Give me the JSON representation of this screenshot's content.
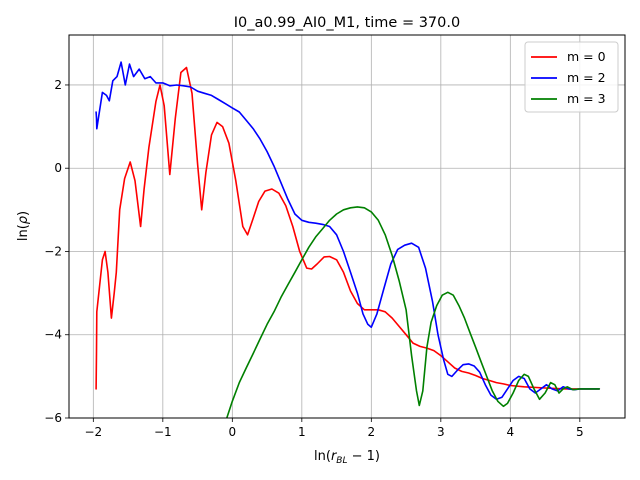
{
  "chart_data": {
    "type": "line",
    "title": "I0_a0.99_AI0_M1, time = 370.0",
    "xlabel": "ln(r_BL − 1)",
    "ylabel": "ln(ρ)",
    "xlim": [
      -2.35,
      5.65
    ],
    "ylim": [
      -6.0,
      3.2
    ],
    "xticks": [
      -2,
      -1,
      0,
      1,
      2,
      3,
      4,
      5
    ],
    "xtick_labels": [
      "−2",
      "−1",
      "0",
      "1",
      "2",
      "3",
      "4",
      "5"
    ],
    "yticks": [
      -6,
      -4,
      -2,
      0,
      2
    ],
    "ytick_labels": [
      "−6",
      "−4",
      "−2",
      "0",
      "2"
    ],
    "grid": true,
    "legend_position": "top-right",
    "series": [
      {
        "name": "m = 0",
        "color": "#ff0000",
        "points": [
          [
            -1.96,
            -5.3
          ],
          [
            -1.955,
            -4.4
          ],
          [
            -1.95,
            -3.45
          ],
          [
            -1.87,
            -2.2
          ],
          [
            -1.83,
            -2.0
          ],
          [
            -1.79,
            -2.5
          ],
          [
            -1.74,
            -3.6
          ],
          [
            -1.7,
            -3.0
          ],
          [
            -1.67,
            -2.5
          ],
          [
            -1.62,
            -1.0
          ],
          [
            -1.55,
            -0.25
          ],
          [
            -1.47,
            0.15
          ],
          [
            -1.4,
            -0.3
          ],
          [
            -1.32,
            -1.4
          ],
          [
            -1.27,
            -0.5
          ],
          [
            -1.2,
            0.5
          ],
          [
            -1.1,
            1.6
          ],
          [
            -1.04,
            2.0
          ],
          [
            -0.98,
            1.5
          ],
          [
            -0.9,
            -0.15
          ],
          [
            -0.82,
            1.2
          ],
          [
            -0.74,
            2.3
          ],
          [
            -0.66,
            2.42
          ],
          [
            -0.58,
            1.8
          ],
          [
            -0.5,
            0.1
          ],
          [
            -0.44,
            -1.0
          ],
          [
            -0.38,
            -0.1
          ],
          [
            -0.3,
            0.8
          ],
          [
            -0.22,
            1.1
          ],
          [
            -0.14,
            1.0
          ],
          [
            -0.05,
            0.6
          ],
          [
            0.05,
            -0.3
          ],
          [
            0.15,
            -1.4
          ],
          [
            0.22,
            -1.6
          ],
          [
            0.3,
            -1.2
          ],
          [
            0.38,
            -0.8
          ],
          [
            0.47,
            -0.55
          ],
          [
            0.57,
            -0.5
          ],
          [
            0.67,
            -0.6
          ],
          [
            0.77,
            -0.9
          ],
          [
            0.87,
            -1.4
          ],
          [
            0.97,
            -2.0
          ],
          [
            1.07,
            -2.4
          ],
          [
            1.14,
            -2.42
          ],
          [
            1.22,
            -2.3
          ],
          [
            1.32,
            -2.13
          ],
          [
            1.4,
            -2.12
          ],
          [
            1.5,
            -2.2
          ],
          [
            1.6,
            -2.5
          ],
          [
            1.7,
            -2.95
          ],
          [
            1.8,
            -3.25
          ],
          [
            1.9,
            -3.4
          ],
          [
            2.0,
            -3.4
          ],
          [
            2.1,
            -3.4
          ],
          [
            2.2,
            -3.45
          ],
          [
            2.3,
            -3.6
          ],
          [
            2.4,
            -3.8
          ],
          [
            2.5,
            -4.0
          ],
          [
            2.6,
            -4.2
          ],
          [
            2.7,
            -4.28
          ],
          [
            2.8,
            -4.32
          ],
          [
            2.9,
            -4.38
          ],
          [
            3.0,
            -4.5
          ],
          [
            3.1,
            -4.65
          ],
          [
            3.2,
            -4.8
          ],
          [
            3.3,
            -4.88
          ],
          [
            3.4,
            -4.92
          ],
          [
            3.5,
            -4.98
          ],
          [
            3.6,
            -5.05
          ],
          [
            3.7,
            -5.1
          ],
          [
            3.8,
            -5.15
          ],
          [
            3.9,
            -5.18
          ],
          [
            4.0,
            -5.22
          ],
          [
            4.2,
            -5.25
          ],
          [
            4.5,
            -5.28
          ],
          [
            4.8,
            -5.3
          ],
          [
            5.0,
            -5.3
          ],
          [
            5.28,
            -5.3
          ]
        ]
      },
      {
        "name": "m = 2",
        "color": "#0000ff",
        "points": [
          [
            -1.96,
            1.35
          ],
          [
            -1.955,
            1.2
          ],
          [
            -1.95,
            0.95
          ],
          [
            -1.87,
            1.82
          ],
          [
            -1.81,
            1.75
          ],
          [
            -1.77,
            1.62
          ],
          [
            -1.72,
            2.1
          ],
          [
            -1.66,
            2.2
          ],
          [
            -1.6,
            2.55
          ],
          [
            -1.54,
            2.0
          ],
          [
            -1.48,
            2.5
          ],
          [
            -1.42,
            2.2
          ],
          [
            -1.34,
            2.38
          ],
          [
            -1.26,
            2.15
          ],
          [
            -1.18,
            2.2
          ],
          [
            -1.1,
            2.05
          ],
          [
            -1.0,
            2.05
          ],
          [
            -0.9,
            1.98
          ],
          [
            -0.8,
            2.0
          ],
          [
            -0.7,
            1.98
          ],
          [
            -0.6,
            1.95
          ],
          [
            -0.5,
            1.85
          ],
          [
            -0.4,
            1.8
          ],
          [
            -0.3,
            1.75
          ],
          [
            -0.2,
            1.65
          ],
          [
            -0.1,
            1.55
          ],
          [
            0.0,
            1.45
          ],
          [
            0.1,
            1.35
          ],
          [
            0.2,
            1.15
          ],
          [
            0.3,
            0.95
          ],
          [
            0.4,
            0.7
          ],
          [
            0.5,
            0.4
          ],
          [
            0.6,
            0.05
          ],
          [
            0.7,
            -0.35
          ],
          [
            0.8,
            -0.75
          ],
          [
            0.9,
            -1.1
          ],
          [
            1.0,
            -1.25
          ],
          [
            1.1,
            -1.3
          ],
          [
            1.2,
            -1.32
          ],
          [
            1.3,
            -1.35
          ],
          [
            1.4,
            -1.4
          ],
          [
            1.5,
            -1.6
          ],
          [
            1.6,
            -2.0
          ],
          [
            1.7,
            -2.5
          ],
          [
            1.8,
            -3.0
          ],
          [
            1.88,
            -3.5
          ],
          [
            1.95,
            -3.75
          ],
          [
            2.0,
            -3.82
          ],
          [
            2.08,
            -3.5
          ],
          [
            2.18,
            -2.9
          ],
          [
            2.28,
            -2.3
          ],
          [
            2.38,
            -1.95
          ],
          [
            2.48,
            -1.85
          ],
          [
            2.58,
            -1.8
          ],
          [
            2.68,
            -1.9
          ],
          [
            2.78,
            -2.4
          ],
          [
            2.88,
            -3.2
          ],
          [
            2.96,
            -4.0
          ],
          [
            3.04,
            -4.6
          ],
          [
            3.1,
            -4.95
          ],
          [
            3.16,
            -5.0
          ],
          [
            3.24,
            -4.85
          ],
          [
            3.32,
            -4.72
          ],
          [
            3.4,
            -4.7
          ],
          [
            3.48,
            -4.75
          ],
          [
            3.56,
            -4.9
          ],
          [
            3.64,
            -5.2
          ],
          [
            3.72,
            -5.45
          ],
          [
            3.8,
            -5.55
          ],
          [
            3.88,
            -5.5
          ],
          [
            3.96,
            -5.3
          ],
          [
            4.04,
            -5.1
          ],
          [
            4.12,
            -5.0
          ],
          [
            4.2,
            -5.05
          ],
          [
            4.28,
            -5.3
          ],
          [
            4.36,
            -5.4
          ],
          [
            4.44,
            -5.3
          ],
          [
            4.52,
            -5.2
          ],
          [
            4.6,
            -5.3
          ],
          [
            4.68,
            -5.35
          ],
          [
            4.76,
            -5.25
          ],
          [
            4.84,
            -5.3
          ],
          [
            4.92,
            -5.32
          ],
          [
            5.0,
            -5.3
          ],
          [
            5.28,
            -5.3
          ]
        ]
      },
      {
        "name": "m = 3",
        "color": "#008000",
        "points": [
          [
            -0.08,
            -6.0
          ],
          [
            0.0,
            -5.6
          ],
          [
            0.1,
            -5.15
          ],
          [
            0.2,
            -4.8
          ],
          [
            0.3,
            -4.45
          ],
          [
            0.4,
            -4.1
          ],
          [
            0.5,
            -3.75
          ],
          [
            0.6,
            -3.45
          ],
          [
            0.7,
            -3.1
          ],
          [
            0.8,
            -2.8
          ],
          [
            0.9,
            -2.5
          ],
          [
            1.0,
            -2.2
          ],
          [
            1.1,
            -1.9
          ],
          [
            1.2,
            -1.65
          ],
          [
            1.3,
            -1.45
          ],
          [
            1.4,
            -1.25
          ],
          [
            1.5,
            -1.1
          ],
          [
            1.6,
            -1.0
          ],
          [
            1.7,
            -0.95
          ],
          [
            1.8,
            -0.93
          ],
          [
            1.9,
            -0.95
          ],
          [
            2.0,
            -1.05
          ],
          [
            2.1,
            -1.25
          ],
          [
            2.2,
            -1.6
          ],
          [
            2.3,
            -2.1
          ],
          [
            2.4,
            -2.7
          ],
          [
            2.5,
            -3.4
          ],
          [
            2.58,
            -4.5
          ],
          [
            2.65,
            -5.35
          ],
          [
            2.69,
            -5.7
          ],
          [
            2.74,
            -5.35
          ],
          [
            2.8,
            -4.3
          ],
          [
            2.86,
            -3.7
          ],
          [
            2.94,
            -3.3
          ],
          [
            3.02,
            -3.05
          ],
          [
            3.1,
            -2.98
          ],
          [
            3.18,
            -3.05
          ],
          [
            3.26,
            -3.3
          ],
          [
            3.34,
            -3.6
          ],
          [
            3.42,
            -3.95
          ],
          [
            3.5,
            -4.3
          ],
          [
            3.58,
            -4.65
          ],
          [
            3.66,
            -5.0
          ],
          [
            3.74,
            -5.35
          ],
          [
            3.82,
            -5.6
          ],
          [
            3.9,
            -5.72
          ],
          [
            3.96,
            -5.65
          ],
          [
            4.04,
            -5.4
          ],
          [
            4.12,
            -5.1
          ],
          [
            4.2,
            -4.95
          ],
          [
            4.26,
            -5.0
          ],
          [
            4.34,
            -5.3
          ],
          [
            4.42,
            -5.55
          ],
          [
            4.5,
            -5.4
          ],
          [
            4.58,
            -5.15
          ],
          [
            4.64,
            -5.2
          ],
          [
            4.7,
            -5.4
          ],
          [
            4.76,
            -5.3
          ],
          [
            4.82,
            -5.25
          ],
          [
            4.9,
            -5.32
          ],
          [
            5.0,
            -5.3
          ],
          [
            5.28,
            -5.3
          ]
        ]
      }
    ]
  }
}
